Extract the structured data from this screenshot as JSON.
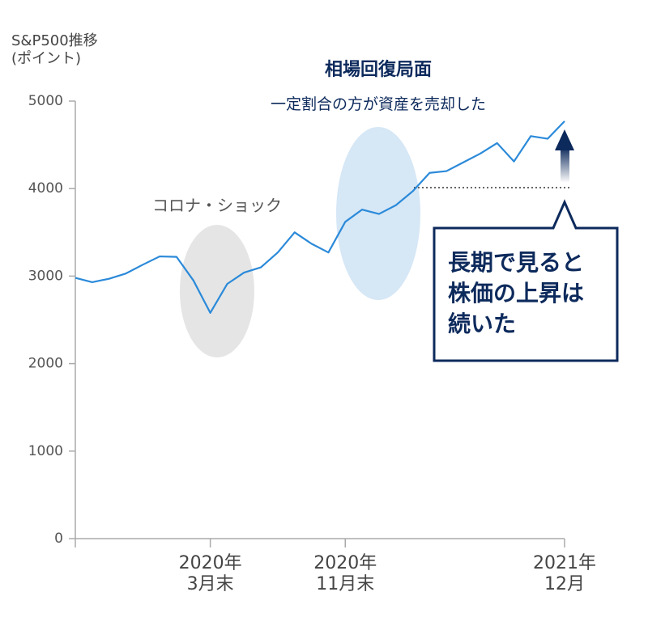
{
  "chart_data": {
    "type": "line",
    "y_axis_label": "S&P500推移\n(ポイント)",
    "title": "相場回復局面",
    "subtitle": "一定割合の方が資産を売却した",
    "annotations": [
      "コロナ・ショック",
      "長期で見ると\n株価の上昇は\n続いた"
    ],
    "categories": [
      null,
      null,
      null,
      null,
      null,
      null,
      null,
      null,
      "2020年\n3月末",
      null,
      null,
      null,
      null,
      null,
      null,
      null,
      "2020年\n11月末",
      null,
      null,
      null,
      null,
      null,
      null,
      null,
      null,
      null,
      null,
      null,
      null,
      "2021年\n12月"
    ],
    "series": [
      {
        "name": "S&P500",
        "color": "#2b8ad9",
        "values": [
          2980,
          2930,
          2970,
          3030,
          3130,
          3225,
          3220,
          2950,
          2580,
          2910,
          3040,
          3100,
          3270,
          3500,
          3370,
          3270,
          3620,
          3760,
          3710,
          3810,
          3970,
          4180,
          4200,
          4300,
          4400,
          4520,
          4310,
          4600,
          4570,
          4770
        ]
      }
    ],
    "ylim": [
      0,
      5000
    ],
    "yticks": [
      0,
      1000,
      2000,
      3000,
      4000,
      5000
    ],
    "grid": false
  }
}
